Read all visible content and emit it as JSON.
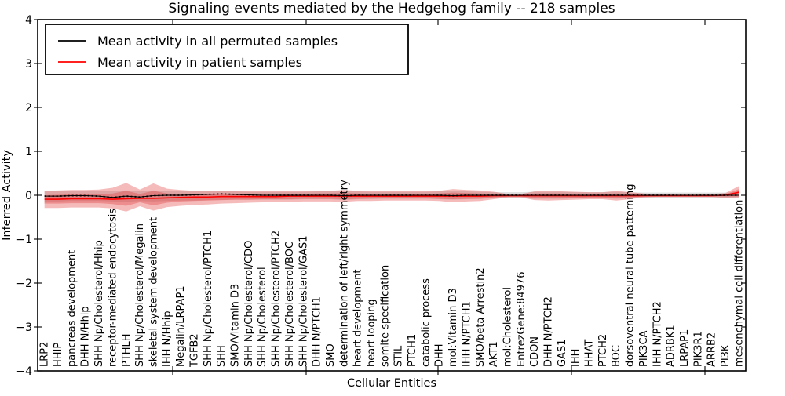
{
  "chart_data": {
    "type": "line",
    "title": "Signaling events mediated by the Hedgehog family -- 218 samples",
    "xlabel": "Cellular Entities",
    "ylabel": "Inferred Activity",
    "ylim": [
      -4,
      4
    ],
    "yticks": [
      4,
      3,
      2,
      1,
      0,
      -1,
      -2,
      -3,
      -4
    ],
    "grid": false,
    "legend_position": "upper left",
    "samples_note": "218 samples",
    "categories": [
      "LRP2",
      "HHIP",
      "pancreas development",
      "DHH N/Hhip",
      "SHH Np/Cholesterol/Hhip",
      "receptor-mediated endocytosis",
      "PTHLH",
      "SHH Np/Cholesterol/Megalin",
      "skeletal system development",
      "IHH N/Hhip",
      "Megalin/LRPAP1",
      "TGFB2",
      "SHH Np/Cholesterol/PTCH1",
      "SHH",
      "SMO/Vitamin D3",
      "SHH Np/Cholesterol/CDO",
      "SHH Np/Cholesterol",
      "SHH Np/Cholesterol/PTCH2",
      "SHH Np/Cholesterol/BOC",
      "SHH Np/Cholesterol/GAS1",
      "DHH N/PTCH1",
      "SMO",
      "determination of left/right symmetry",
      "heart development",
      "heart looping",
      "somite specification",
      "STIL",
      "PTCH1",
      "catabolic process",
      "DHH",
      "mol:Vitamin D3",
      "IHH N/PTCH1",
      "SMO/beta Arrestin2",
      "AKT1",
      "mol:Cholesterol",
      "EntrezGene:84976",
      "CDON",
      "DHH N/PTCH2",
      "GAS1",
      "IHH",
      "HHAT",
      "PTCH2",
      "BOC",
      "dorsoventral neural tube patterning",
      "PIK3CA",
      "IHH N/PTCH2",
      "ADRBK1",
      "LRPAP1",
      "PIK3R1",
      "ARRB2",
      "PI3K",
      "mesenchymal cell differentiation"
    ],
    "series": [
      {
        "name": "Mean activity in all permuted samples",
        "color": "#000000",
        "values": [
          -0.02,
          -0.02,
          -0.01,
          -0.01,
          -0.02,
          -0.05,
          -0.02,
          -0.04,
          -0.01,
          0.0,
          0.0,
          0.01,
          0.02,
          0.03,
          0.02,
          0.01,
          0.0,
          0.0,
          0.0,
          0.0,
          0.0,
          0.0,
          -0.01,
          0.0,
          0.0,
          0.0,
          0.0,
          0.0,
          0.0,
          0.0,
          -0.01,
          0.0,
          0.0,
          0.0,
          0.0,
          0.0,
          0.0,
          0.0,
          0.0,
          0.0,
          0.0,
          0.0,
          0.0,
          0.0,
          0.0,
          0.0,
          0.0,
          0.0,
          0.0,
          0.0,
          0.0,
          0.0
        ]
      },
      {
        "name": "Mean activity in patient samples",
        "color": "#ff0000",
        "values": [
          -0.09,
          -0.09,
          -0.08,
          -0.08,
          -0.08,
          -0.09,
          -0.08,
          -0.07,
          -0.07,
          -0.06,
          -0.05,
          -0.04,
          -0.04,
          -0.03,
          -0.03,
          -0.03,
          -0.03,
          -0.03,
          -0.02,
          -0.02,
          -0.02,
          -0.02,
          -0.02,
          -0.02,
          -0.02,
          -0.02,
          -0.02,
          -0.02,
          -0.02,
          -0.02,
          -0.02,
          -0.02,
          -0.02,
          -0.01,
          -0.01,
          -0.01,
          -0.01,
          -0.01,
          -0.01,
          -0.01,
          -0.01,
          -0.01,
          -0.01,
          -0.01,
          -0.01,
          -0.01,
          -0.01,
          -0.01,
          -0.01,
          -0.01,
          0.0,
          0.07
        ]
      }
    ],
    "bands": [
      {
        "name": "permuted-samples-range",
        "color": "rgba(150,150,150,0.30)",
        "upper": [
          0.1,
          0.1,
          0.1,
          0.1,
          0.1,
          0.1,
          0.11,
          0.1,
          0.11,
          0.1,
          0.09,
          0.09,
          0.09,
          0.09,
          0.09,
          0.08,
          0.08,
          0.08,
          0.08,
          0.08,
          0.09,
          0.09,
          0.11,
          0.09,
          0.08,
          0.08,
          0.08,
          0.08,
          0.08,
          0.09,
          0.1,
          0.09,
          0.08,
          0.07,
          0.07,
          0.07,
          0.08,
          0.08,
          0.08,
          0.07,
          0.07,
          0.07,
          0.08,
          0.07,
          0.06,
          0.06,
          0.06,
          0.06,
          0.06,
          0.06,
          0.06,
          0.06
        ],
        "lower": [
          -0.14,
          -0.14,
          -0.13,
          -0.13,
          -0.13,
          -0.14,
          -0.15,
          -0.13,
          -0.14,
          -0.13,
          -0.12,
          -0.12,
          -0.11,
          -0.11,
          -0.1,
          -0.1,
          -0.1,
          -0.1,
          -0.1,
          -0.09,
          -0.09,
          -0.09,
          -0.11,
          -0.09,
          -0.09,
          -0.08,
          -0.08,
          -0.08,
          -0.08,
          -0.09,
          -0.1,
          -0.09,
          -0.08,
          -0.07,
          -0.07,
          -0.07,
          -0.08,
          -0.08,
          -0.08,
          -0.07,
          -0.07,
          -0.07,
          -0.08,
          -0.07,
          -0.06,
          -0.06,
          -0.06,
          -0.06,
          -0.06,
          -0.06,
          -0.06,
          -0.06
        ]
      },
      {
        "name": "patient-samples-outer-range",
        "color": "rgba(225,45,45,0.32)",
        "upper": [
          0.1,
          0.11,
          0.12,
          0.12,
          0.13,
          0.17,
          0.28,
          0.13,
          0.27,
          0.15,
          0.12,
          0.1,
          0.1,
          0.1,
          0.1,
          0.09,
          0.09,
          0.09,
          0.09,
          0.09,
          0.1,
          0.1,
          0.12,
          0.1,
          0.09,
          0.09,
          0.09,
          0.09,
          0.09,
          0.1,
          0.14,
          0.12,
          0.11,
          0.08,
          0.03,
          0.03,
          0.09,
          0.1,
          0.09,
          0.08,
          0.07,
          0.07,
          0.1,
          0.07,
          0.04,
          0.03,
          0.03,
          0.03,
          0.03,
          0.03,
          0.05,
          0.21
        ],
        "lower": [
          -0.29,
          -0.29,
          -0.28,
          -0.28,
          -0.28,
          -0.3,
          -0.37,
          -0.25,
          -0.35,
          -0.27,
          -0.24,
          -0.22,
          -0.21,
          -0.19,
          -0.18,
          -0.17,
          -0.16,
          -0.16,
          -0.15,
          -0.14,
          -0.14,
          -0.14,
          -0.15,
          -0.13,
          -0.13,
          -0.12,
          -0.12,
          -0.12,
          -0.12,
          -0.13,
          -0.16,
          -0.14,
          -0.13,
          -0.09,
          -0.05,
          -0.05,
          -0.11,
          -0.12,
          -0.11,
          -0.1,
          -0.09,
          -0.09,
          -0.12,
          -0.09,
          -0.05,
          -0.04,
          -0.04,
          -0.04,
          -0.04,
          -0.04,
          -0.06,
          -0.05
        ]
      },
      {
        "name": "patient-samples-inner-range",
        "color": "rgba(225,45,45,0.32)",
        "upper": [
          0.0,
          0.01,
          0.02,
          0.02,
          0.02,
          0.04,
          0.1,
          0.03,
          0.1,
          0.04,
          0.03,
          0.03,
          0.03,
          0.03,
          0.03,
          0.03,
          0.03,
          0.03,
          0.03,
          0.03,
          0.04,
          0.04,
          0.05,
          0.04,
          0.03,
          0.03,
          0.03,
          0.03,
          0.03,
          0.04,
          0.06,
          0.05,
          0.04,
          0.03,
          0.01,
          0.01,
          0.04,
          0.04,
          0.04,
          0.03,
          0.03,
          0.03,
          0.04,
          0.03,
          0.01,
          0.01,
          0.01,
          0.01,
          0.01,
          0.01,
          0.02,
          0.14
        ],
        "lower": [
          -0.19,
          -0.19,
          -0.18,
          -0.18,
          -0.18,
          -0.2,
          -0.24,
          -0.16,
          -0.23,
          -0.17,
          -0.14,
          -0.13,
          -0.12,
          -0.11,
          -0.1,
          -0.1,
          -0.09,
          -0.09,
          -0.09,
          -0.08,
          -0.08,
          -0.08,
          -0.09,
          -0.08,
          -0.07,
          -0.07,
          -0.07,
          -0.07,
          -0.07,
          -0.08,
          -0.09,
          -0.08,
          -0.08,
          -0.05,
          -0.03,
          -0.03,
          -0.06,
          -0.07,
          -0.06,
          -0.06,
          -0.05,
          -0.05,
          -0.07,
          -0.05,
          -0.03,
          -0.02,
          -0.02,
          -0.02,
          -0.02,
          -0.02,
          -0.03,
          -0.03
        ]
      }
    ]
  }
}
